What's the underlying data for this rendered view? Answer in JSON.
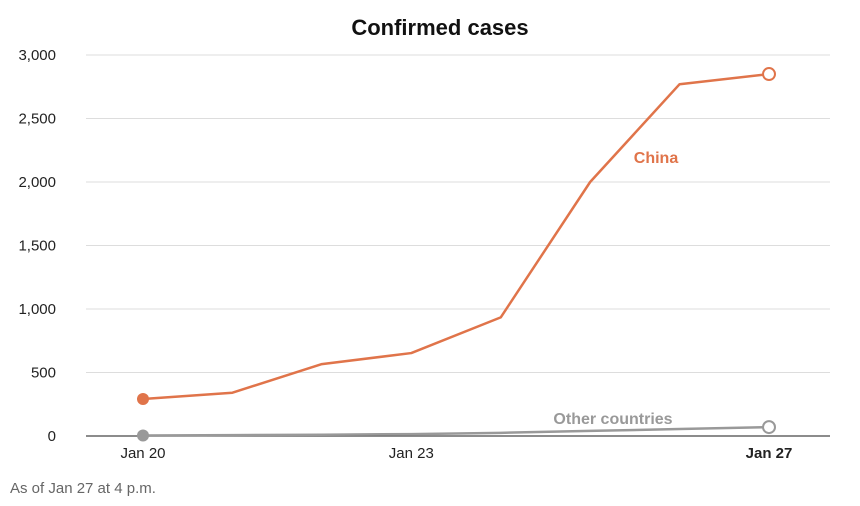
{
  "footnote": "As of Jan 27 at 4 p.m.",
  "chart_data": {
    "type": "line",
    "title": "Confirmed cases",
    "xlabel": "",
    "ylabel": "",
    "x": [
      "Jan 20",
      "Jan 21",
      "Jan 22",
      "Jan 23",
      "Jan 24",
      "Jan 25",
      "Jan 26",
      "Jan 27"
    ],
    "x_tick_labels": [
      {
        "label": "Jan 20",
        "bold": false
      },
      {
        "label": "Jan 23",
        "bold": false
      },
      {
        "label": "Jan 27",
        "bold": true
      }
    ],
    "y_ticks": [
      0,
      500,
      1000,
      1500,
      2000,
      2500,
      3000
    ],
    "y_tick_labels": [
      "0",
      "500",
      "1,000",
      "1,500",
      "2,000",
      "2,500",
      "3,000"
    ],
    "ylim": [
      0,
      3000
    ],
    "grid": true,
    "series": [
      {
        "name": "China",
        "color": "#e0744a",
        "x": [
          "Jan 20",
          "Jan 21",
          "Jan 22",
          "Jan 23",
          "Jan 24",
          "Jan 25",
          "Jan 26",
          "Jan 27"
        ],
        "values": [
          291,
          341,
          566,
          653,
          934,
          2000,
          2770,
          2850
        ]
      },
      {
        "name": "Other countries",
        "color": "#999999",
        "x": [
          "Jan 20",
          "Jan 21",
          "Jan 22",
          "Jan 23",
          "Jan 24",
          "Jan 25",
          "Jan 26",
          "Jan 27"
        ],
        "values": [
          4,
          7,
          10,
          15,
          25,
          40,
          55,
          70
        ]
      }
    ]
  }
}
